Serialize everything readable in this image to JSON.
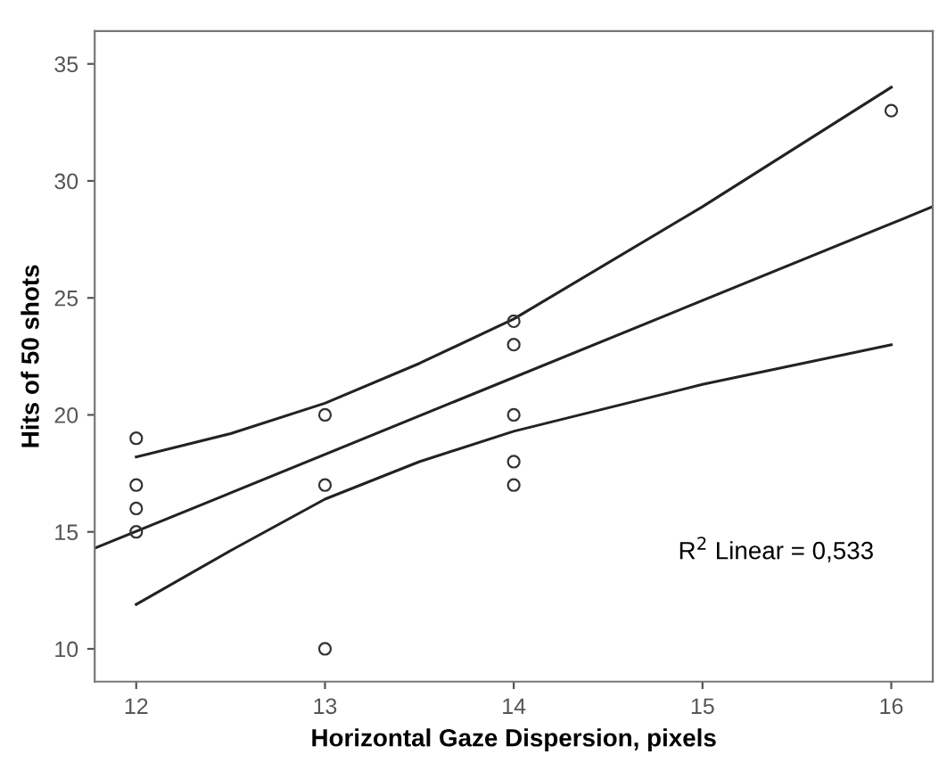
{
  "chart_data": {
    "type": "scatter",
    "xlabel": "Horizontal Gaze Dispersion, pixels",
    "ylabel": "Hits of 50 shots",
    "xlim": [
      11.78,
      16.22
    ],
    "ylim": [
      8.6,
      36.4
    ],
    "xticks": [
      12,
      13,
      14,
      15,
      16
    ],
    "yticks": [
      10,
      15,
      20,
      25,
      30,
      35
    ],
    "grid": false,
    "marker": "circle",
    "annotations": [
      "R$^{2}$ Linear = 0,533"
    ],
    "series": [
      {
        "color": "#333333",
        "x": [
          12,
          12,
          12,
          12,
          13,
          13,
          13,
          14,
          14,
          14,
          14,
          14,
          16
        ],
        "values": [
          19,
          17,
          16,
          15,
          20,
          17,
          10,
          24,
          23,
          20,
          18,
          17,
          33
        ]
      },
      {
        "type": "line",
        "color": "#222222",
        "marker": "none",
        "x": [
          11.78,
          16.22
        ],
        "values": [
          14.3,
          28.9
        ]
      },
      {
        "type": "line",
        "color": "#222222",
        "marker": "none",
        "x": [
          12,
          12.5,
          13,
          13.5,
          14,
          15,
          16
        ],
        "values": [
          18.2,
          19.2,
          20.5,
          22.2,
          24.1,
          28.9,
          34.0
        ]
      },
      {
        "type": "line",
        "color": "#222222",
        "marker": "none",
        "x": [
          12,
          12.5,
          13,
          13.5,
          14,
          15,
          16
        ],
        "values": [
          11.9,
          14.2,
          16.4,
          18.0,
          19.3,
          21.3,
          23.0
        ]
      }
    ]
  }
}
